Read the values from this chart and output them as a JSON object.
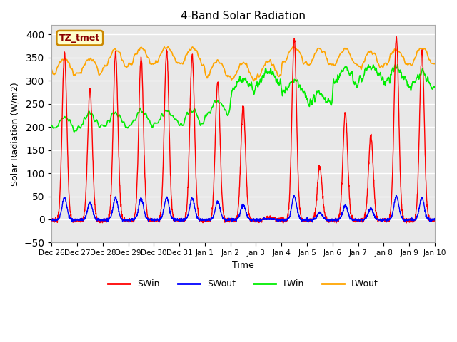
{
  "title": "4-Band Solar Radiation",
  "xlabel": "Time",
  "ylabel": "Solar Radiation (W/m2)",
  "ylim": [
    -50,
    420
  ],
  "yticks": [
    -50,
    0,
    50,
    100,
    150,
    200,
    250,
    300,
    350,
    400
  ],
  "annotation_text": "TZ_tmet",
  "annotation_color": "#8B0000",
  "annotation_bg": "#FFFFCC",
  "annotation_border": "#CC8800",
  "colors": {
    "SWin": "#FF0000",
    "SWout": "#0000FF",
    "LWin": "#00EE00",
    "LWout": "#FFA500"
  },
  "linewidths": {
    "SWin": 1.0,
    "SWout": 1.0,
    "LWin": 1.2,
    "LWout": 1.2
  },
  "bg_color": "#FFFFFF",
  "plot_bg_color": "#E8E8E8",
  "grid_color": "#FFFFFF",
  "legend_entries": [
    "SWin",
    "SWout",
    "LWin",
    "LWout"
  ],
  "tick_labels": [
    "Dec 26",
    "Dec 27",
    "Dec 28",
    "Dec 29",
    "Dec 30",
    "Dec 31",
    "Jan 1",
    "Jan 2",
    "Jan 3",
    "Jan 4",
    "Jan 5",
    "Jan 6",
    "Jan 7",
    "Jan 8",
    "Jan 9",
    "Jan 10"
  ]
}
